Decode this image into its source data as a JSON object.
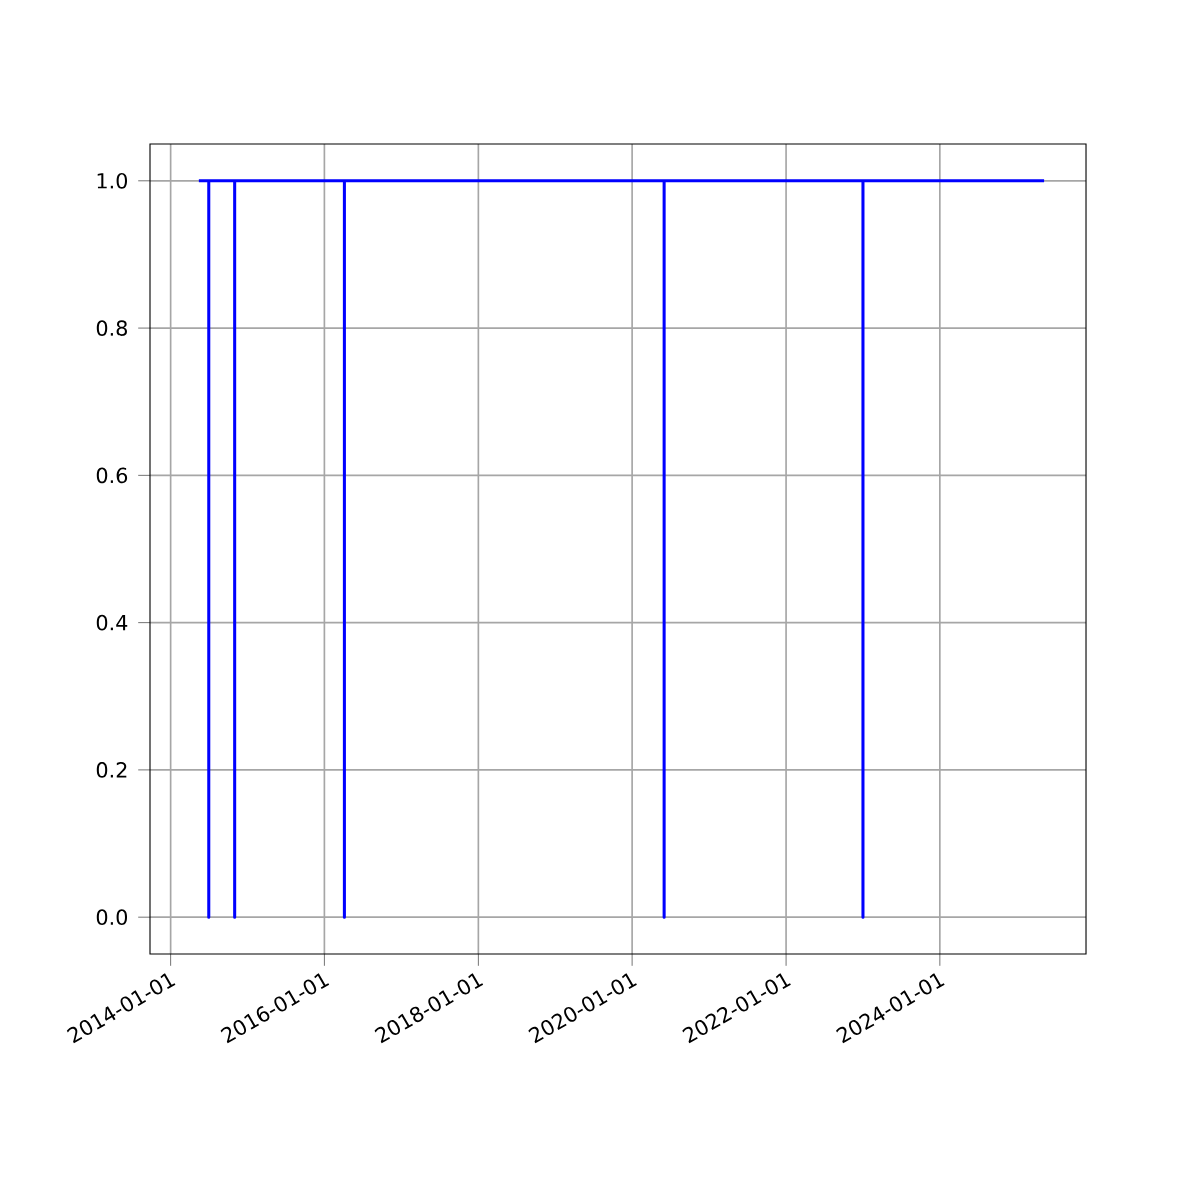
{
  "chart_data": {
    "type": "line",
    "x": [
      "2014-05-15",
      "2014-07-01",
      "2014-07-01",
      "2014-07-01",
      "2014-11-01",
      "2014-11-01",
      "2014-11-01",
      "2016-04-05",
      "2016-04-05",
      "2016-04-05",
      "2020-06-01",
      "2020-06-01",
      "2020-06-01",
      "2023-01-01",
      "2023-01-01",
      "2023-01-01",
      "2025-05-10"
    ],
    "values": [
      1,
      1,
      0,
      1,
      1,
      0,
      1,
      1,
      0,
      1,
      1,
      0,
      1,
      1,
      0,
      1,
      1
    ],
    "color": "#0000ff",
    "xlim": [
      "2013-09-25",
      "2025-11-25"
    ],
    "ylim": [
      -0.05,
      1.05
    ],
    "xticks": [
      {
        "value": "2014-01-01",
        "label": "2014-01-01"
      },
      {
        "value": "2016-01-01",
        "label": "2016-01-01"
      },
      {
        "value": "2018-01-01",
        "label": "2018-01-01"
      },
      {
        "value": "2020-01-01",
        "label": "2020-01-01"
      },
      {
        "value": "2022-01-01",
        "label": "2022-01-01"
      },
      {
        "value": "2024-01-01",
        "label": "2024-01-01"
      }
    ],
    "yticks": [
      {
        "value": 0,
        "label": "0.0"
      },
      {
        "value": 0.2,
        "label": "0.2"
      },
      {
        "value": 0.4,
        "label": "0.4"
      },
      {
        "value": 0.6,
        "label": "0.6"
      },
      {
        "value": 0.8,
        "label": "0.8"
      },
      {
        "value": 1,
        "label": "1.0"
      }
    ],
    "grid": true
  }
}
